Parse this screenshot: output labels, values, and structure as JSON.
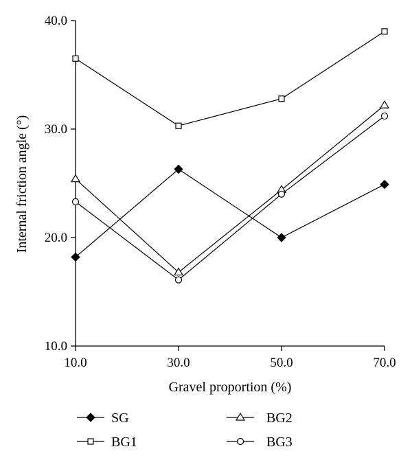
{
  "chart_data": {
    "type": "line",
    "title": "",
    "xlabel": "Gravel proportion (%)",
    "ylabel": "Internal friction angle (°)",
    "x": [
      10,
      30,
      50,
      70
    ],
    "x_tick_labels": [
      "10.0",
      "30.0",
      "50.0",
      "70.0"
    ],
    "xlim": [
      10,
      70
    ],
    "ylim": [
      10,
      40
    ],
    "y_ticks": [
      10,
      20,
      30,
      40
    ],
    "y_tick_labels": [
      "10.0",
      "20.0",
      "30.0",
      "40.0"
    ],
    "grid": false,
    "legend_position": "bottom",
    "series": [
      {
        "name": "SG",
        "marker": "filled-diamond",
        "values": [
          18.2,
          26.3,
          20.0,
          24.9
        ]
      },
      {
        "name": "BG1",
        "marker": "open-square",
        "values": [
          36.5,
          30.3,
          32.8,
          39.0
        ]
      },
      {
        "name": "BG2",
        "marker": "open-triangle",
        "values": [
          25.4,
          16.8,
          24.4,
          32.2
        ]
      },
      {
        "name": "BG3",
        "marker": "open-circle",
        "values": [
          23.3,
          16.1,
          24.0,
          31.2
        ]
      }
    ]
  }
}
